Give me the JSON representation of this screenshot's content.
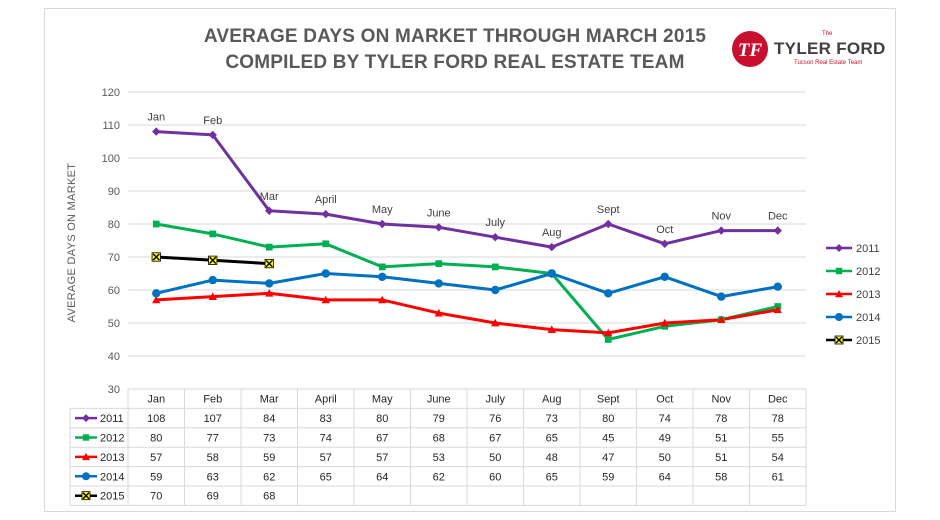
{
  "title_line1": "AVERAGE DAYS ON MARKET THROUGH MARCH 2015",
  "title_line2": "COMPILED BY TYLER FORD REAL ESTATE TEAM",
  "logo": {
    "mark": "TF",
    "top": "The",
    "name": "TYLER FORD",
    "tagline": "Tucson Real Estate Team"
  },
  "chart_data": {
    "type": "line",
    "title": "AVERAGE DAYS ON MARKET THROUGH MARCH 2015",
    "subtitle": "COMPILED BY TYLER FORD REAL ESTATE TEAM",
    "ylabel": "AVERAGE DAYS ON MARKET",
    "xlabel": "",
    "ylim": [
      30,
      120
    ],
    "yticks": [
      30,
      40,
      50,
      60,
      70,
      80,
      90,
      100,
      110,
      120
    ],
    "grid": true,
    "legend_position": "right",
    "categories": [
      "Jan",
      "Feb",
      "Mar",
      "April",
      "May",
      "June",
      "July",
      "Aug",
      "Sept",
      "Oct",
      "Nov",
      "Dec"
    ],
    "point_labels_series": "2011",
    "data_table": true,
    "series": [
      {
        "name": "2011",
        "color": "#7030a0",
        "marker": "diamond",
        "values": [
          108,
          107,
          84,
          83,
          80,
          79,
          76,
          73,
          80,
          74,
          78,
          78
        ]
      },
      {
        "name": "2012",
        "color": "#00b050",
        "marker": "square",
        "values": [
          80,
          77,
          73,
          74,
          67,
          68,
          67,
          65,
          45,
          49,
          51,
          55
        ]
      },
      {
        "name": "2013",
        "color": "#ff0000",
        "marker": "triangle",
        "values": [
          57,
          58,
          59,
          57,
          57,
          53,
          50,
          48,
          47,
          50,
          51,
          54
        ]
      },
      {
        "name": "2014",
        "color": "#0070c0",
        "marker": "circle",
        "values": [
          59,
          63,
          62,
          65,
          64,
          62,
          60,
          65,
          59,
          64,
          58,
          61
        ]
      },
      {
        "name": "2015",
        "color": "#000000",
        "marker": "x",
        "marker_fill": "#ffff00",
        "values": [
          70,
          69,
          68,
          null,
          null,
          null,
          null,
          null,
          null,
          null,
          null,
          null
        ]
      }
    ]
  }
}
